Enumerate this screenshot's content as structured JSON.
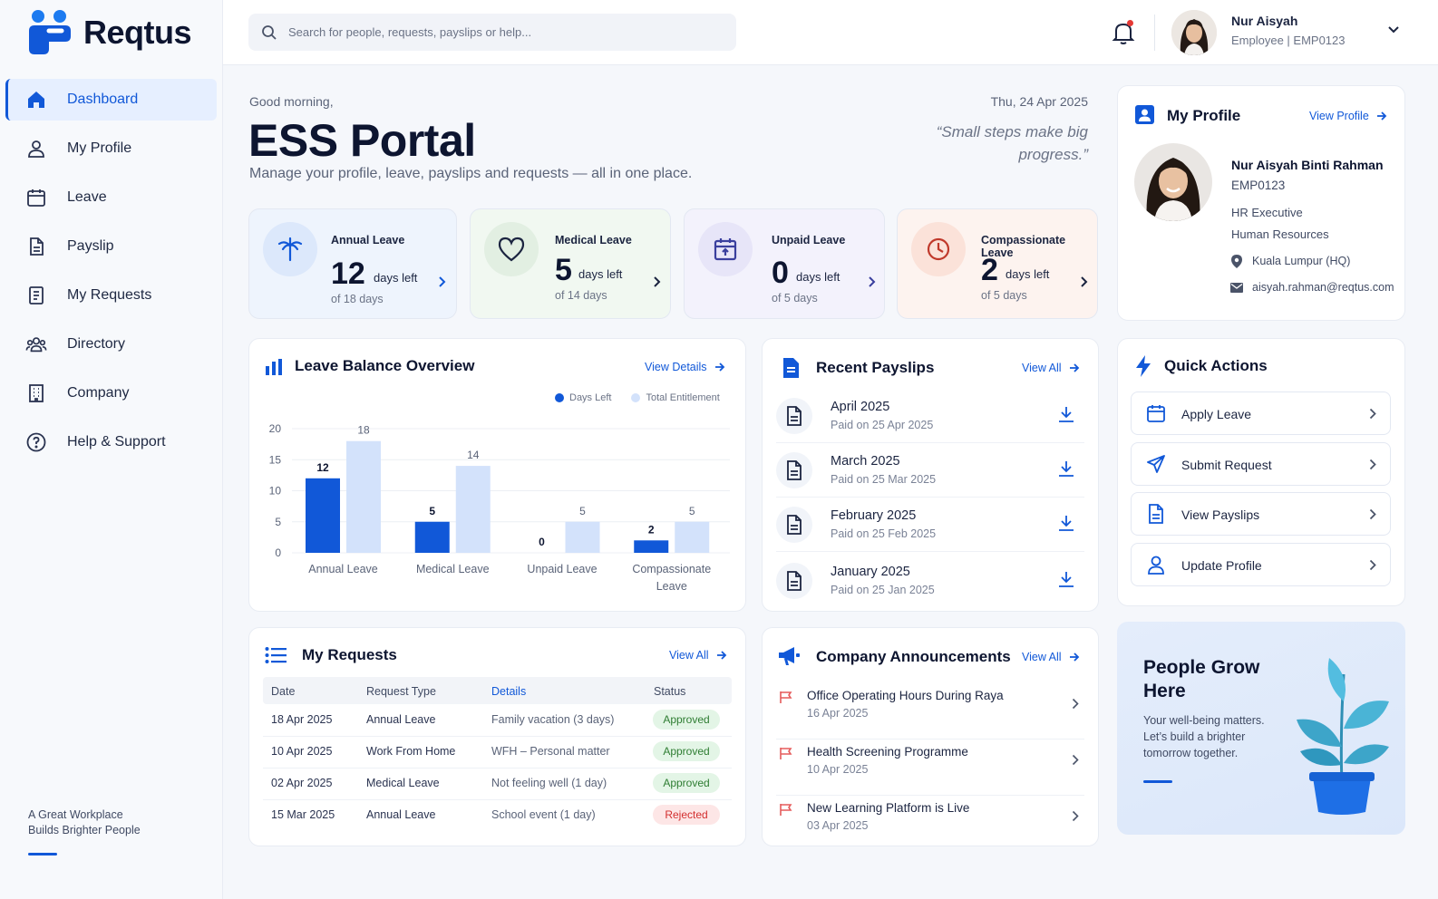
{
  "app": {
    "name": "Reqtus"
  },
  "sidebar": {
    "items": [
      {
        "label": "Dashboard",
        "icon": "home-icon",
        "active": true
      },
      {
        "label": "My Profile",
        "icon": "user-icon"
      },
      {
        "label": "Leave",
        "icon": "calendar-icon"
      },
      {
        "label": "Payslip",
        "icon": "document-icon"
      },
      {
        "label": "My Requests",
        "icon": "list-document-icon"
      },
      {
        "label": "Directory",
        "icon": "people-icon"
      },
      {
        "label": "Company",
        "icon": "building-icon"
      },
      {
        "label": "Help & Support",
        "icon": "help-icon"
      }
    ],
    "footer_line1": "A Great Workplace",
    "footer_line2": "Builds Brighter People"
  },
  "search": {
    "placeholder": "Search for people, requests, payslips or help..."
  },
  "user": {
    "name": "Nur Aisyah",
    "role": "Employee  |  EMP0123"
  },
  "header": {
    "greeting": "Good morning,",
    "title": "ESS Portal",
    "subtitle": "Manage your profile, leave, payslips and requests — all in one place.",
    "date": "Thu, 24 Apr 2025",
    "quote": "“Small steps make big progress.”"
  },
  "leave_cards": [
    {
      "name": "Annual Leave",
      "days": "12",
      "suffix": "days left",
      "of": "of 18 days",
      "icon": "palm-tree-icon",
      "accent": "#1158d8"
    },
    {
      "name": "Medical Leave",
      "days": "5",
      "suffix": "days left",
      "of": "of 14 days",
      "icon": "heart-icon",
      "accent": "#1b2440"
    },
    {
      "name": "Unpaid Leave",
      "days": "0",
      "suffix": "days left",
      "of": "of 5 days",
      "icon": "calendar-icon",
      "accent": "#3a3f9e"
    },
    {
      "name": "Compassionate Leave",
      "days": "2",
      "suffix": "days left",
      "of": "of 5 days",
      "icon": "clock-icon",
      "accent": "#c0392b"
    }
  ],
  "leave_overview": {
    "title": "Leave Balance Overview",
    "link": "View Details",
    "legend_left": "Days Left",
    "legend_total": "Total Entitlement"
  },
  "chart_data": {
    "type": "bar",
    "categories": [
      "Annual Leave",
      "Medical Leave",
      "Unpaid Leave",
      "Compassionate Leave"
    ],
    "category_lines": [
      [
        "Annual Leave"
      ],
      [
        "Medical Leave"
      ],
      [
        "Unpaid Leave"
      ],
      [
        "Compassionate",
        "Leave"
      ]
    ],
    "series": [
      {
        "name": "Days Left",
        "values": [
          12,
          5,
          0,
          2
        ],
        "color": "#1158d8"
      },
      {
        "name": "Total Entitlement",
        "values": [
          18,
          14,
          5,
          5
        ],
        "color": "#d3e2fb"
      }
    ],
    "yticks": [
      "0",
      "5",
      "10",
      "15",
      "20"
    ],
    "ylim": [
      0,
      20
    ],
    "grid": true,
    "legend": "top-right"
  },
  "payslips": {
    "title": "Recent Payslips",
    "link": "View All",
    "items": [
      {
        "month": "April 2025",
        "paid": "Paid on 25 Apr 2025"
      },
      {
        "month": "March 2025",
        "paid": "Paid on 25 Mar 2025"
      },
      {
        "month": "February 2025",
        "paid": "Paid on 25 Feb 2025"
      },
      {
        "month": "January 2025",
        "paid": "Paid on 25 Jan 2025"
      }
    ]
  },
  "profile": {
    "title": "My Profile",
    "link": "View Profile",
    "full_name": "Nur Aisyah Binti Rahman",
    "emp_id": "EMP0123",
    "position": "HR Executive",
    "department": "Human Resources",
    "location": "Kuala Lumpur (HQ)",
    "email": "aisyah.rahman@reqtus.com"
  },
  "quick_actions": {
    "title": "Quick Actions",
    "items": [
      {
        "label": "Apply Leave",
        "icon": "calendar-icon"
      },
      {
        "label": "Submit Request",
        "icon": "send-icon"
      },
      {
        "label": "View Payslips",
        "icon": "document-icon"
      },
      {
        "label": "Update Profile",
        "icon": "user-icon"
      }
    ]
  },
  "requests": {
    "title": "My Requests",
    "link": "View All",
    "headers": {
      "date": "Date",
      "type": "Request Type",
      "details": "Details",
      "status": "Status"
    },
    "rows": [
      {
        "date": "18 Apr 2025",
        "type": "Annual Leave",
        "details": "Family vacation (3 days)",
        "status": "Approved"
      },
      {
        "date": "10 Apr 2025",
        "type": "Work From Home",
        "details": "WFH – Personal matter",
        "status": "Approved"
      },
      {
        "date": "02 Apr 2025",
        "type": "Medical Leave",
        "details": "Not feeling well (1 day)",
        "status": "Approved"
      },
      {
        "date": "15 Mar 2025",
        "type": "Annual Leave",
        "details": "School event (1 day)",
        "status": "Rejected"
      }
    ]
  },
  "announcements": {
    "title": "Company Announcements",
    "link": "View All",
    "items": [
      {
        "title": "Office Operating Hours During Raya",
        "date": "16 Apr 2025"
      },
      {
        "title": "Health Screening Programme",
        "date": "10 Apr 2025"
      },
      {
        "title": "New Learning Platform is Live",
        "date": "03 Apr 2025"
      }
    ]
  },
  "promo": {
    "title": "People Grow Here",
    "text": "Your well-being matters. Let’s build a brighter tomorrow together."
  }
}
